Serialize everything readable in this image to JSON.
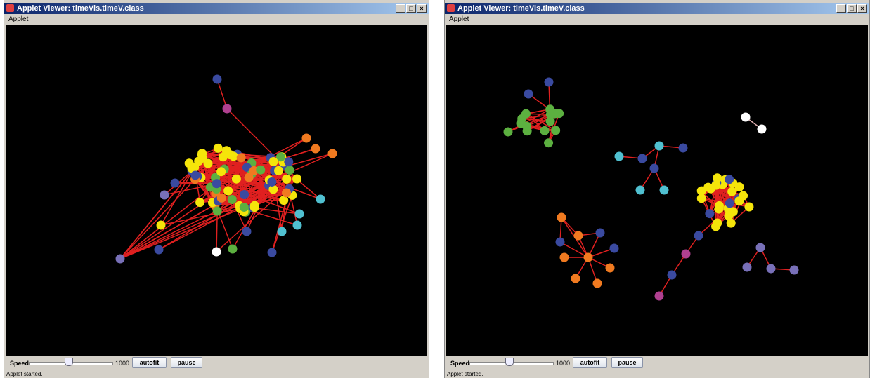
{
  "windows": [
    {
      "title": "Applet Viewer: timeVis.timeV.class",
      "menu": "Applet",
      "controls": {
        "speed_label": "Speed",
        "speed_value": "1000",
        "autofit": "autofit",
        "pause": "pause"
      },
      "status": "Applet started."
    },
    {
      "title": "Applet Viewer: timeVis.timeV.class",
      "menu": "Applet",
      "controls": {
        "speed_label": "Speed",
        "speed_value": "1000",
        "autofit": "autofit",
        "pause": "pause"
      },
      "status": "Applet started."
    }
  ]
}
